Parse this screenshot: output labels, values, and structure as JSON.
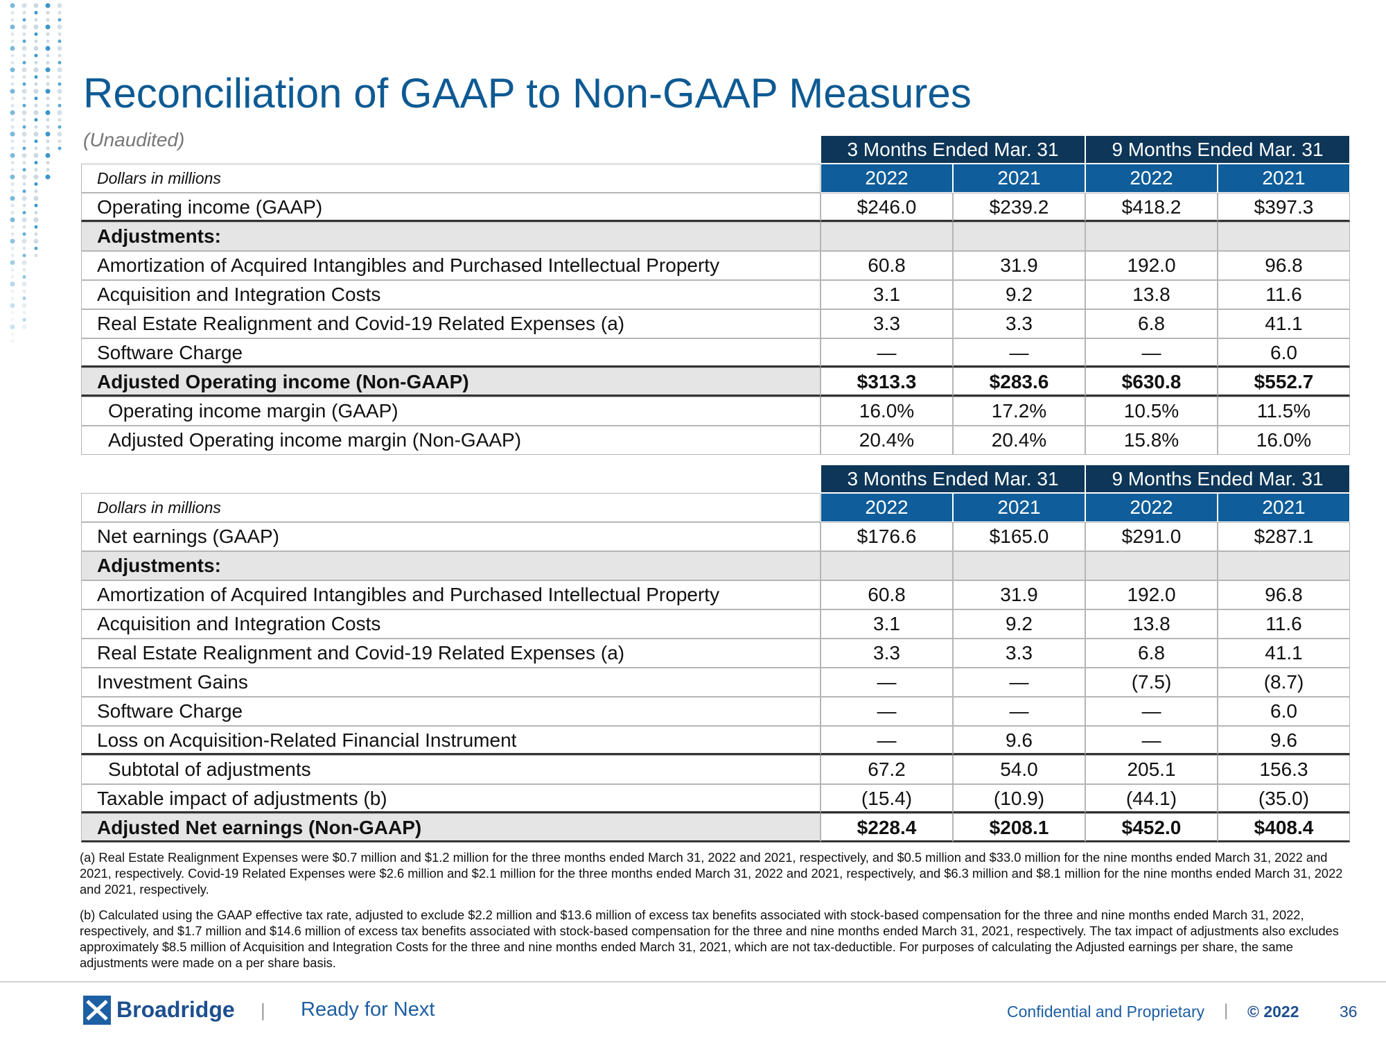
{
  "header": {
    "title": "Reconciliation of GAAP to Non-GAAP Measures",
    "subtitle": "(Unaudited)"
  },
  "tables": [
    {
      "group_headers": [
        "3 Months Ended Mar. 31",
        "9 Months Ended Mar. 31"
      ],
      "unit_label": "Dollars in millions",
      "years": [
        "2022",
        "2021",
        "2022",
        "2021"
      ],
      "rows": [
        {
          "label": "Operating income (GAAP)",
          "cells": [
            "$246.0",
            "$239.2",
            "$418.2",
            "$397.3"
          ],
          "kind": "normal",
          "rule_below": true
        },
        {
          "label": "Adjustments:",
          "cells": [
            "",
            "",
            "",
            ""
          ],
          "kind": "section",
          "rule_below": false
        },
        {
          "label": "Amortization of Acquired Intangibles and Purchased Intellectual Property",
          "cells": [
            "60.8",
            "31.9",
            "192.0",
            "96.8"
          ],
          "kind": "normal",
          "rule_below": false
        },
        {
          "label": "Acquisition and Integration Costs",
          "cells": [
            "3.1",
            "9.2",
            "13.8",
            "11.6"
          ],
          "kind": "normal",
          "rule_below": false
        },
        {
          "label": "Real Estate Realignment and Covid-19 Related Expenses (a)",
          "cells": [
            "3.3",
            "3.3",
            "6.8",
            "41.1"
          ],
          "kind": "normal",
          "rule_below": false
        },
        {
          "label": "Software Charge",
          "cells": [
            "—",
            "—",
            "—",
            "6.0"
          ],
          "kind": "normal",
          "rule_below": true
        },
        {
          "label": "Adjusted Operating income (Non-GAAP)",
          "cells": [
            "$313.3",
            "$283.6",
            "$630.8",
            "$552.7"
          ],
          "kind": "total",
          "rule_below": true
        },
        {
          "label": "Operating income margin (GAAP)",
          "cells": [
            "16.0%",
            "17.2%",
            "10.5%",
            "11.5%"
          ],
          "kind": "indent",
          "rule_below": false
        },
        {
          "label": "Adjusted Operating income margin (Non-GAAP)",
          "cells": [
            "20.4%",
            "20.4%",
            "15.8%",
            "16.0%"
          ],
          "kind": "indent",
          "rule_below": false
        }
      ]
    },
    {
      "group_headers": [
        "3 Months Ended Mar. 31",
        "9 Months Ended Mar. 31"
      ],
      "unit_label": "Dollars in millions",
      "years": [
        "2022",
        "2021",
        "2022",
        "2021"
      ],
      "rows": [
        {
          "label": "Net earnings (GAAP)",
          "cells": [
            "$176.6",
            "$165.0",
            "$291.0",
            "$287.1"
          ],
          "kind": "normal",
          "rule_below": false
        },
        {
          "label": "Adjustments:",
          "cells": [
            "",
            "",
            "",
            ""
          ],
          "kind": "section",
          "rule_below": false
        },
        {
          "label": "Amortization of Acquired Intangibles and Purchased Intellectual Property",
          "cells": [
            "60.8",
            "31.9",
            "192.0",
            "96.8"
          ],
          "kind": "normal",
          "rule_below": false
        },
        {
          "label": "Acquisition and Integration Costs",
          "cells": [
            "3.1",
            "9.2",
            "13.8",
            "11.6"
          ],
          "kind": "normal",
          "rule_below": false
        },
        {
          "label": "Real Estate Realignment and Covid-19 Related Expenses (a)",
          "cells": [
            "3.3",
            "3.3",
            "6.8",
            "41.1"
          ],
          "kind": "normal",
          "rule_below": false
        },
        {
          "label": "Investment Gains",
          "cells": [
            "—",
            "—",
            "(7.5)",
            "(8.7)"
          ],
          "kind": "normal",
          "rule_below": false
        },
        {
          "label": "Software Charge",
          "cells": [
            "—",
            "—",
            "—",
            "6.0"
          ],
          "kind": "normal",
          "rule_below": false
        },
        {
          "label": "Loss on Acquisition-Related Financial Instrument",
          "cells": [
            "—",
            "9.6",
            "—",
            "9.6"
          ],
          "kind": "normal",
          "rule_below": true
        },
        {
          "label": "Subtotal of adjustments",
          "cells": [
            "67.2",
            "54.0",
            "205.1",
            "156.3"
          ],
          "kind": "indent",
          "rule_below": false
        },
        {
          "label": "Taxable impact of adjustments (b)",
          "cells": [
            "(15.4)",
            "(10.9)",
            "(44.1)",
            "(35.0)"
          ],
          "kind": "normal",
          "rule_below": true
        },
        {
          "label": "Adjusted Net earnings (Non-GAAP)",
          "cells": [
            "$228.4",
            "$208.1",
            "$452.0",
            "$408.4"
          ],
          "kind": "total",
          "rule_below": true
        }
      ]
    }
  ],
  "footnotes": [
    "(a) Real Estate Realignment Expenses were $0.7 million and $1.2 million for the three months ended March 31, 2022 and 2021, respectively, and $0.5 million and $33.0 million for the nine months ended March 31, 2022 and 2021, respectively. Covid-19 Related Expenses were $2.6 million and $2.1 million for the three months ended March 31, 2022 and 2021, respectively, and $6.3 million and $8.1 million for the nine months ended March 31, 2022 and 2021, respectively.",
    "(b) Calculated using the GAAP effective tax rate, adjusted to exclude $2.2 million and $13.6 million of excess tax benefits associated with stock-based compensation for the three and nine months ended March 31, 2022, respectively, and $1.7 million and $14.6 million of excess tax benefits associated with stock-based compensation for the three and nine months ended March 31, 2021, respectively. The tax impact of adjustments also excludes approximately $8.5 million of Acquisition and Integration Costs for the three and nine months ended March 31, 2021, which are not tax-deductible. For purposes of calculating the Adjusted earnings per share, the same adjustments were made on a per share basis."
  ],
  "footer": {
    "brand": "Broadridge",
    "separator": "|",
    "tagline": "Ready for Next",
    "confidential": "Confidential and Proprietary",
    "separator2": "|",
    "copyright": "© 2022",
    "page": "36"
  }
}
